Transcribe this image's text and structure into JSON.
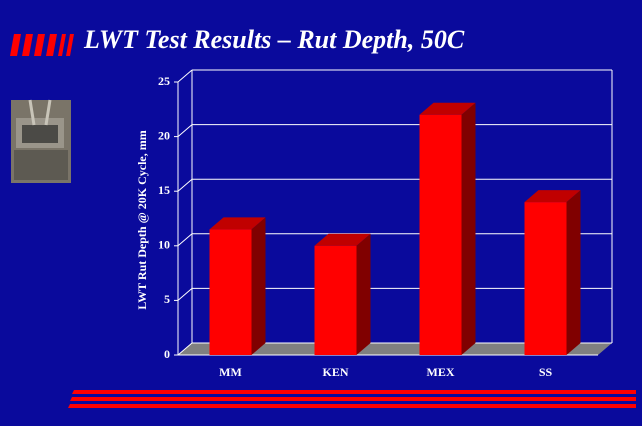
{
  "chart_data": {
    "type": "bar",
    "title": "LWT Test Results – Rut Depth,  50C",
    "y_label": "LWT Rut Depth @ 20K Cycle, mm",
    "categories": [
      "MM",
      "KEN",
      "MEX",
      "SS"
    ],
    "values": [
      11.5,
      10,
      22,
      14
    ],
    "color": "#ff0000",
    "ylim": [
      0,
      25
    ],
    "yticks": [
      0,
      5,
      10,
      15,
      20,
      25
    ],
    "grid": true
  }
}
